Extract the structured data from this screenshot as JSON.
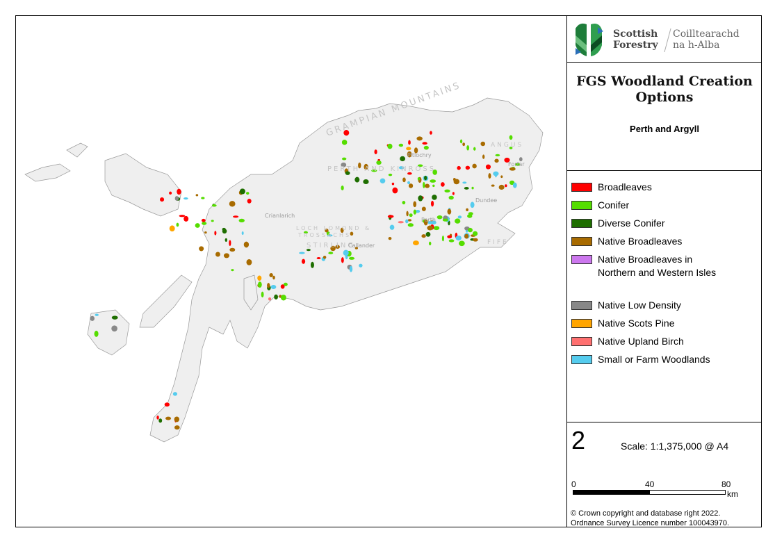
{
  "logo": {
    "name_en_1": "Scottish",
    "name_en_2": "Forestry",
    "name_gd_1": "Coilltearachd",
    "name_gd_2": "na h-Alba"
  },
  "title": "FGS Woodland Creation Options",
  "subtitle": "Perth and Argyll",
  "legend": [
    {
      "label": "Broadleaves",
      "color": "#ff0000"
    },
    {
      "label": "Conifer",
      "color": "#55dd00"
    },
    {
      "label": "Diverse Conifer",
      "color": "#1e6e00"
    },
    {
      "label": "Native Broadleaves",
      "color": "#a86b00"
    },
    {
      "label": "Native Broadleaves in Northern and Western Isles",
      "color": "#cc77ee"
    },
    {
      "label": "Native Low Density",
      "color": "#888888"
    },
    {
      "label": "Native Scots Pine",
      "color": "#ffa500"
    },
    {
      "label": "Native Upland Birch",
      "color": "#ff7070"
    },
    {
      "label": "Small or Farm Woodlands",
      "color": "#55ccee"
    }
  ],
  "map_number": "2",
  "scale": "Scale: 1:1,375,000 @ A4",
  "scalebar": {
    "ticks": [
      "0",
      "40",
      "80"
    ],
    "unit": "km"
  },
  "copyright_1": "© Crown copyright and database right 2022.",
  "copyright_2": "Ordnance Survey Licence number 100043970.",
  "map_labels": {
    "mountains": "GRAMPIAN MOUNTAINS",
    "region_1": "PERTH AND KINROSS",
    "region_2": "LOCH LOMOND &",
    "region_2b": "TROSSACHS",
    "region_3": "STIRLING",
    "region_4": "ANGUS",
    "region_5": "FIFE",
    "town_1": "Perth",
    "town_2": "Dundee",
    "town_3": "Forfar",
    "town_4": "Crianlarich",
    "town_5": "Pitlochry",
    "town_6": "Callander"
  }
}
